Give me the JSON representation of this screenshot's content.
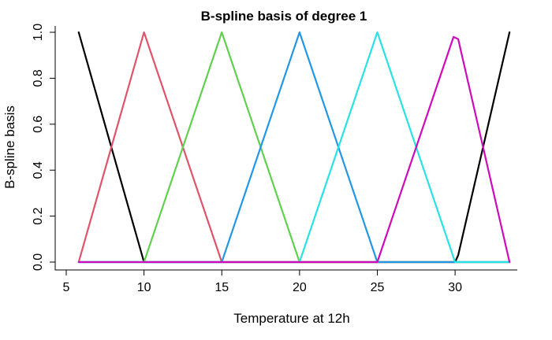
{
  "chart_data": {
    "type": "line",
    "title": "B-spline basis of degree 1",
    "xlabel": "Temperature at 12h",
    "ylabel": "B-spline basis",
    "xlim": [
      5,
      34
    ],
    "ylim": [
      0,
      1
    ],
    "x_ticks": [
      5,
      10,
      15,
      20,
      25,
      30
    ],
    "y_ticks": [
      0.0,
      0.2,
      0.4,
      0.6,
      0.8,
      1.0
    ],
    "x_tick_labels": [
      "5",
      "10",
      "15",
      "20",
      "25",
      "30"
    ],
    "y_tick_labels": [
      "0.0",
      "0.2",
      "0.4",
      "0.6",
      "0.8",
      "1.0"
    ],
    "grid": false,
    "frame": "open-top-right",
    "series": [
      {
        "color": "#000000",
        "points": [
          [
            5.8,
            1.0
          ],
          [
            10.0,
            0.0
          ],
          [
            30.0,
            0.0
          ],
          [
            30.2,
            0.03
          ],
          [
            33.5,
            1.0
          ]
        ]
      },
      {
        "color": "#DF536B",
        "points": [
          [
            5.8,
            0.0
          ],
          [
            10.0,
            1.0
          ],
          [
            15.0,
            0.0
          ],
          [
            33.5,
            0.0
          ]
        ]
      },
      {
        "color": "#61D04F",
        "points": [
          [
            5.8,
            0.0
          ],
          [
            10.0,
            0.0
          ],
          [
            15.0,
            1.0
          ],
          [
            20.0,
            0.0
          ],
          [
            33.5,
            0.0
          ]
        ]
      },
      {
        "color": "#2297E6",
        "points": [
          [
            5.8,
            0.0
          ],
          [
            15.0,
            0.0
          ],
          [
            20.0,
            1.0
          ],
          [
            25.0,
            0.0
          ],
          [
            33.5,
            0.0
          ]
        ]
      },
      {
        "color": "#28E2E5",
        "points": [
          [
            5.8,
            0.0
          ],
          [
            20.0,
            0.0
          ],
          [
            25.0,
            1.0
          ],
          [
            30.0,
            0.0
          ],
          [
            33.5,
            0.0
          ]
        ]
      },
      {
        "color": "#CD0BBC",
        "points": [
          [
            5.8,
            0.0
          ],
          [
            25.0,
            0.0
          ],
          [
            29.9,
            0.98
          ],
          [
            30.2,
            0.97
          ],
          [
            33.5,
            0.0
          ]
        ]
      }
    ]
  }
}
